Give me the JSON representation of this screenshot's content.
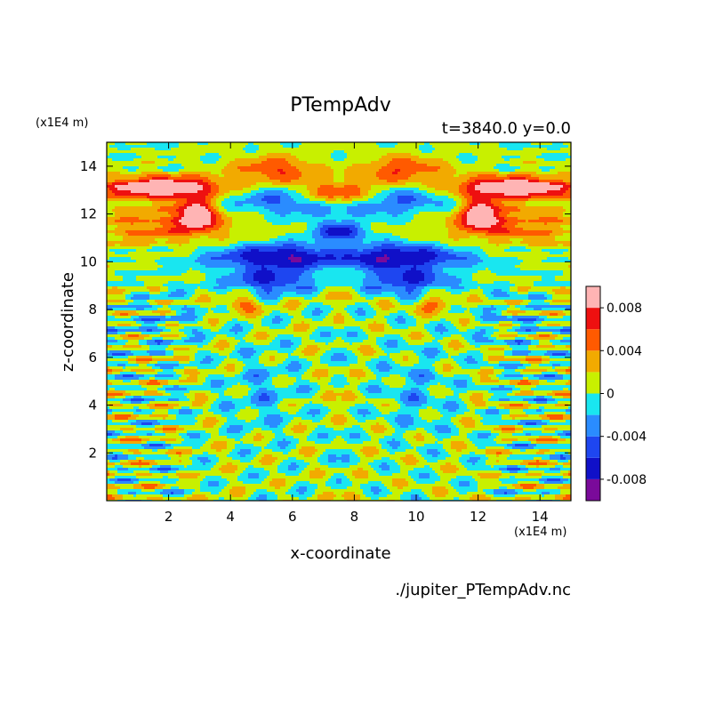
{
  "chart_data": {
    "type": "heatmap",
    "title": "PTempAdv",
    "subtitle": "t=3840.0 y=0.0",
    "xlabel": "x-coordinate",
    "ylabel": "z-coordinate",
    "x_unit": "(x1E4 m)",
    "z_unit": "(x1E4 m)",
    "source": "./jupiter_PTempAdv.nc",
    "xlim": [
      0,
      15
    ],
    "ylim": [
      0,
      15
    ],
    "x_ticks": [
      2,
      4,
      6,
      8,
      10,
      12,
      14
    ],
    "y_ticks": [
      2,
      4,
      6,
      8,
      10,
      12,
      14
    ],
    "colorbar": {
      "levels": [
        -0.01,
        -0.008,
        -0.006,
        -0.004,
        -0.002,
        0,
        0.002,
        0.004,
        0.006,
        0.008,
        0.01
      ],
      "colors": [
        "#7a0a9a",
        "#1010c8",
        "#1e46f0",
        "#2a8cff",
        "#19e6f0",
        "#c8f000",
        "#f2aa00",
        "#ff5a00",
        "#ee1010",
        "#ffb4b4"
      ],
      "tick_labels": [
        "0.008",
        "0.004",
        "0",
        "-0.004",
        "-0.008"
      ],
      "tick_values": [
        0.008,
        0.004,
        0,
        -0.004,
        -0.008
      ]
    }
  }
}
